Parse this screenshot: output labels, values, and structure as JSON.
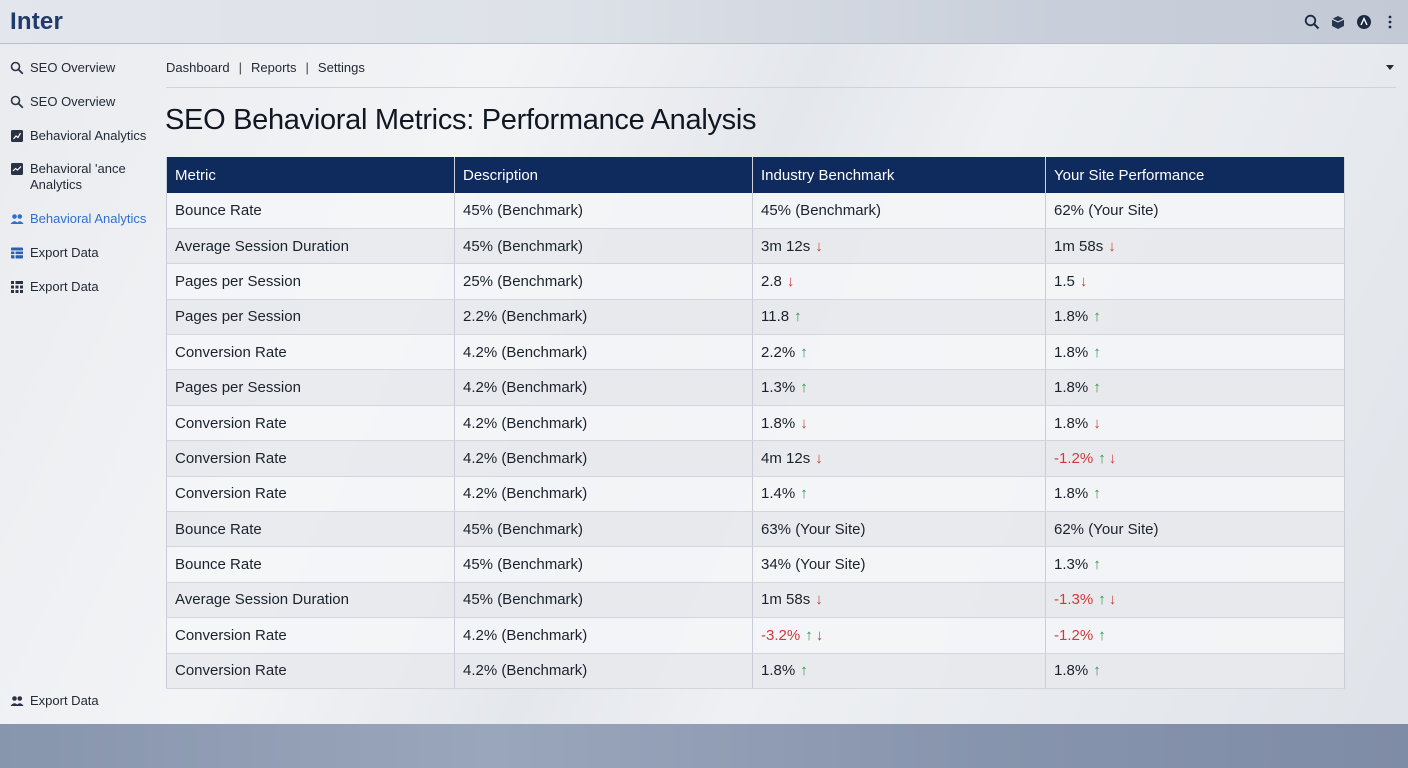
{
  "app": {
    "brand": "Inter"
  },
  "sidebar": {
    "items": [
      {
        "label": "SEO Overview",
        "icon": "search-icon",
        "active": false
      },
      {
        "label": "SEO Overview",
        "icon": "search-icon",
        "active": false
      },
      {
        "label": "Behavioral Analytics",
        "icon": "chart-icon",
        "active": false
      },
      {
        "label": "Behavioral 'ance Analytics",
        "icon": "trend-icon",
        "active": false
      },
      {
        "label": "Behavioral Analytics",
        "icon": "users-icon",
        "active": true
      },
      {
        "label": "Export Data",
        "icon": "table-icon",
        "active": false
      },
      {
        "label": "Export Data",
        "icon": "grid-icon",
        "active": false
      }
    ],
    "footer": {
      "label": "Export Data",
      "icon": "users-icon"
    }
  },
  "nav": {
    "links": [
      "Dashboard",
      "Reports",
      "Settings"
    ]
  },
  "page": {
    "title": "SEO Behavioral Metrics: Performance Analysis"
  },
  "table": {
    "headers": [
      "Metric",
      "Description",
      "Industry Benchmark",
      "Your Site Performance"
    ],
    "rows": [
      {
        "metric": "Bounce Rate",
        "description": "45% (Benchmark)",
        "benchmark": {
          "text": "45% (Benchmark)",
          "neg": false,
          "arrows": []
        },
        "site": {
          "text": "62% (Your Site)",
          "neg": false,
          "arrows": []
        }
      },
      {
        "metric": "Average Session Duration",
        "description": "45% (Benchmark)",
        "benchmark": {
          "text": "3m 12s",
          "neg": false,
          "arrows": [
            "down"
          ]
        },
        "site": {
          "text": "1m 58s",
          "neg": false,
          "arrows": [
            "down"
          ]
        }
      },
      {
        "metric": "Pages per Session",
        "description": "25% (Benchmark)",
        "benchmark": {
          "text": "2.8",
          "neg": false,
          "arrows": [
            "down"
          ]
        },
        "site": {
          "text": "1.5",
          "neg": false,
          "arrows": [
            "down"
          ]
        }
      },
      {
        "metric": "Pages per Session",
        "description": "2.2% (Benchmark)",
        "benchmark": {
          "text": "11.8",
          "neg": false,
          "arrows": [
            "up"
          ]
        },
        "site": {
          "text": "1.8%",
          "neg": false,
          "arrows": [
            "up"
          ]
        }
      },
      {
        "metric": "Conversion Rate",
        "description": "4.2% (Benchmark)",
        "benchmark": {
          "text": "2.2%",
          "neg": false,
          "arrows": [
            "up"
          ]
        },
        "site": {
          "text": "1.8%",
          "neg": false,
          "arrows": [
            "up"
          ]
        }
      },
      {
        "metric": "Pages per Session",
        "description": "4.2% (Benchmark)",
        "benchmark": {
          "text": "1.3%",
          "neg": false,
          "arrows": [
            "up"
          ]
        },
        "site": {
          "text": "1.8%",
          "neg": false,
          "arrows": [
            "up"
          ]
        }
      },
      {
        "metric": "Conversion Rate",
        "description": "4.2% (Benchmark)",
        "benchmark": {
          "text": "1.8%",
          "neg": false,
          "arrows": [
            "down"
          ]
        },
        "site": {
          "text": "1.8%",
          "neg": false,
          "arrows": [
            "down"
          ]
        }
      },
      {
        "metric": "Conversion Rate",
        "description": "4.2% (Benchmark)",
        "benchmark": {
          "text": "4m 12s",
          "neg": false,
          "arrows": [
            "down"
          ]
        },
        "site": {
          "text": "-1.2%",
          "neg": true,
          "arrows": [
            "up",
            "down"
          ]
        }
      },
      {
        "metric": "Conversion Rate",
        "description": "4.2% (Benchmark)",
        "benchmark": {
          "text": "1.4%",
          "neg": false,
          "arrows": [
            "up"
          ]
        },
        "site": {
          "text": "1.8%",
          "neg": false,
          "arrows": [
            "up"
          ]
        }
      },
      {
        "metric": "Bounce Rate",
        "description": "45% (Benchmark)",
        "benchmark": {
          "text": "63% (Your Site)",
          "neg": false,
          "arrows": []
        },
        "site": {
          "text": "62% (Your Site)",
          "neg": false,
          "arrows": []
        }
      },
      {
        "metric": "Bounce Rate",
        "description": "45% (Benchmark)",
        "benchmark": {
          "text": "34% (Your Site)",
          "neg": false,
          "arrows": []
        },
        "site": {
          "text": "1.3%",
          "neg": false,
          "arrows": [
            "up"
          ]
        }
      },
      {
        "metric": "Average Session Duration",
        "description": "45% (Benchmark)",
        "benchmark": {
          "text": "1m 58s",
          "neg": false,
          "arrows": [
            "down"
          ]
        },
        "site": {
          "text": "-1.3%",
          "neg": true,
          "arrows": [
            "up",
            "down"
          ]
        }
      },
      {
        "metric": "Conversion Rate",
        "description": "4.2% (Benchmark)",
        "benchmark": {
          "text": "-3.2%",
          "neg": true,
          "arrows": [
            "up",
            "down"
          ]
        },
        "site": {
          "text": "-1.2%",
          "neg": true,
          "arrows": [
            "up"
          ]
        }
      },
      {
        "metric": "Conversion Rate",
        "description": "4.2% (Benchmark)",
        "benchmark": {
          "text": "1.8%",
          "neg": false,
          "arrows": [
            "up"
          ]
        },
        "site": {
          "text": "1.8%",
          "neg": false,
          "arrows": [
            "up"
          ]
        }
      }
    ]
  },
  "colors": {
    "header_bg": "#0f2a5c",
    "active": "#2f6fd0",
    "up": "#2a9a48",
    "down": "#d03a3a",
    "brand": "#1f3a6b"
  }
}
